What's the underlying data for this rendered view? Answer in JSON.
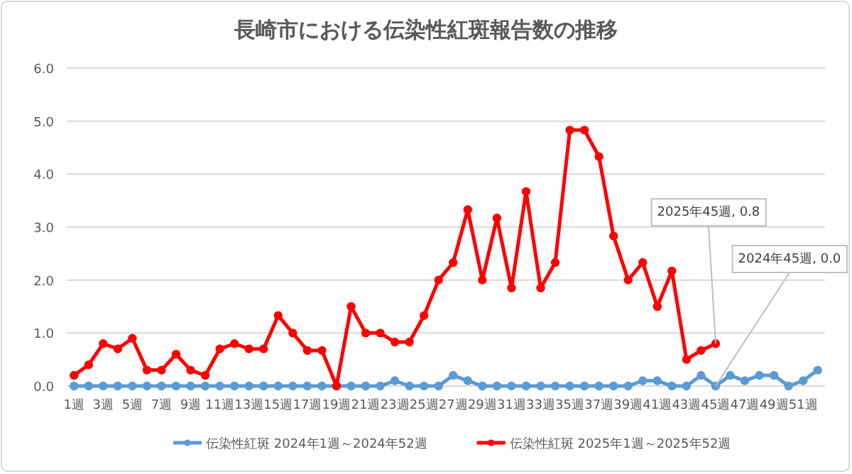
{
  "chart_data": {
    "type": "line",
    "title": "長崎市における伝染性紅斑報告数の推移",
    "categories": [
      "1週",
      null,
      "3週",
      null,
      "5週",
      null,
      "7週",
      null,
      "9週",
      null,
      "11週",
      null,
      "13週",
      null,
      "15週",
      null,
      "17週",
      null,
      "19週",
      null,
      "21週",
      null,
      "23週",
      null,
      "25週",
      null,
      "27週",
      null,
      "29週",
      null,
      "31週",
      null,
      "33週",
      null,
      "35週",
      null,
      "37週",
      null,
      "39週",
      null,
      "41週",
      null,
      "43週",
      null,
      "45週",
      null,
      "47週",
      null,
      "49週",
      null,
      "51週",
      null
    ],
    "series": [
      {
        "name": "伝染性紅斑 2024年1週～2024年52週",
        "color": "#5b9bd5",
        "values": [
          0,
          0,
          0,
          0,
          0,
          0,
          0,
          0,
          0,
          0,
          0,
          0,
          0,
          0,
          0,
          0,
          0,
          0,
          0,
          0,
          0,
          0,
          0.1,
          0,
          0,
          0,
          0.2,
          0.1,
          0,
          0,
          0,
          0,
          0,
          0,
          0,
          0,
          0,
          0,
          0,
          0.1,
          0.1,
          0,
          0,
          0.2,
          0,
          0.2,
          0.1,
          0.2,
          0.2,
          0,
          0.1,
          0.3
        ]
      },
      {
        "name": "伝染性紅斑 2025年1週～2025年52週",
        "color": "#ff0000",
        "values": [
          0.2,
          0.4,
          0.8,
          0.7,
          0.9,
          0.3,
          0.3,
          0.6,
          0.3,
          0.2,
          0.7,
          0.8,
          0.7,
          0.7,
          1.33,
          1.0,
          0.67,
          0.67,
          0,
          1.5,
          1.0,
          1.0,
          0.83,
          0.83,
          1.33,
          2.0,
          2.33,
          3.33,
          2.0,
          3.17,
          1.85,
          3.67,
          1.85,
          2.33,
          4.83,
          4.83,
          4.33,
          2.83,
          2.0,
          2.33,
          1.5,
          2.17,
          0.5,
          0.67,
          0.8,
          null,
          null,
          null,
          null,
          null,
          null,
          null
        ]
      }
    ],
    "ylim": [
      0,
      6
    ],
    "yticks": [
      {
        "value": 0,
        "label": "0.0"
      },
      {
        "value": 1,
        "label": "1.0"
      },
      {
        "value": 2,
        "label": "2.0"
      },
      {
        "value": 3,
        "label": "3.0"
      },
      {
        "value": 4,
        "label": "4.0"
      },
      {
        "value": 5,
        "label": "5.0"
      },
      {
        "value": 6,
        "label": "6.0"
      }
    ],
    "grid": "y",
    "legend": "bottom",
    "marker": "circle",
    "line_style": "solid",
    "annotations": [
      {
        "text": "2025年45週, 0.8",
        "x": "45週",
        "y": 0.8
      },
      {
        "text": "2024年45週, 0.0",
        "x": "45週",
        "y": 0
      }
    ]
  }
}
